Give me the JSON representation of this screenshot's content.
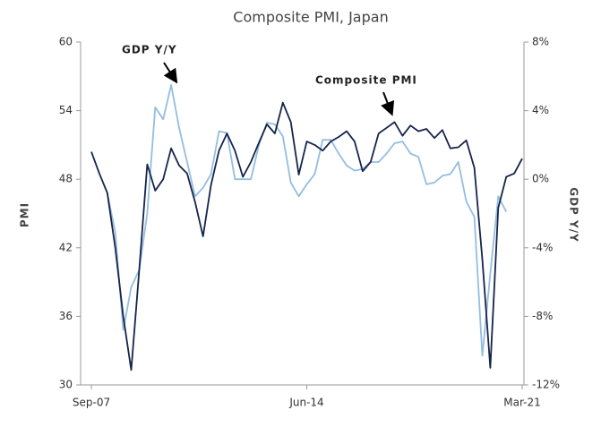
{
  "chart_data": {
    "type": "line",
    "title": "Composite PMI, Japan",
    "y_label": "PMI",
    "y2_label": "GDP  Y/Y",
    "annotations": [
      "GDP  Y/Y",
      "Composite  PMI"
    ],
    "categories": [
      "Sep-07",
      null,
      null,
      null,
      null,
      null,
      null,
      null,
      null,
      null,
      null,
      null,
      null,
      null,
      null,
      null,
      null,
      null,
      null,
      null,
      null,
      null,
      null,
      null,
      null,
      null,
      null,
      "Jun-14",
      null,
      null,
      null,
      null,
      null,
      null,
      null,
      null,
      null,
      null,
      null,
      null,
      null,
      null,
      null,
      null,
      null,
      null,
      null,
      null,
      null,
      null,
      null,
      null,
      null,
      null,
      "Mar-21"
    ],
    "ylim": [
      30,
      60
    ],
    "yticks": [
      30,
      36,
      42,
      48,
      54,
      60
    ],
    "y2lim": [
      -12,
      8
    ],
    "y2ticks": [
      {
        "value": -12,
        "label": "-12%"
      },
      {
        "value": -8,
        "label": "-8%"
      },
      {
        "value": -4,
        "label": "-4%"
      },
      {
        "value": 0,
        "label": "0%"
      },
      {
        "value": 4,
        "label": "4%"
      },
      {
        "value": 8,
        "label": "8%"
      }
    ],
    "series": [
      {
        "name": "Composite PMI",
        "color": "#15244a",
        "values": [
          50.4,
          48.5,
          46.8,
          42,
          36,
          31.3,
          40,
          49.3,
          47,
          48,
          50.7,
          49.2,
          48.5,
          46,
          43,
          47.5,
          50.5,
          52,
          50.5,
          48.2,
          49.5,
          51.2,
          52.8,
          52,
          54.7,
          53,
          48.4,
          51.3,
          51,
          50.5,
          51.3,
          51.7,
          52.2,
          51.3,
          48.7,
          49.5,
          52,
          52.5,
          53,
          51.8,
          52.7,
          52.2,
          52.4,
          51.6,
          52.3,
          50.7,
          50.8,
          51.4,
          49,
          41,
          31.5,
          45.5,
          48.2,
          48.5,
          49.8
        ]
      },
      {
        "name": "GDP Y/Y",
        "color": "#94bde0",
        "axis": "y2",
        "values": [
          null,
          null,
          -0.8,
          -3.1,
          -8.8,
          -6.3,
          -5.3,
          -2,
          4.2,
          3.5,
          5.5,
          3,
          1,
          -1,
          -0.5,
          0.3,
          2.8,
          2.7,
          0,
          0,
          0,
          2,
          3.3,
          3.2,
          2.5,
          -0.2,
          -1,
          -0.3,
          0.3,
          2.3,
          2.3,
          1.5,
          0.8,
          0.5,
          0.6,
          1,
          1,
          1.5,
          2.1,
          2.2,
          1.5,
          1.3,
          -0.3,
          -0.2,
          0.2,
          0.3,
          1,
          -1.3,
          -2.2,
          -10.3,
          -5.5,
          -1,
          -1.9,
          null,
          null
        ]
      }
    ]
  }
}
